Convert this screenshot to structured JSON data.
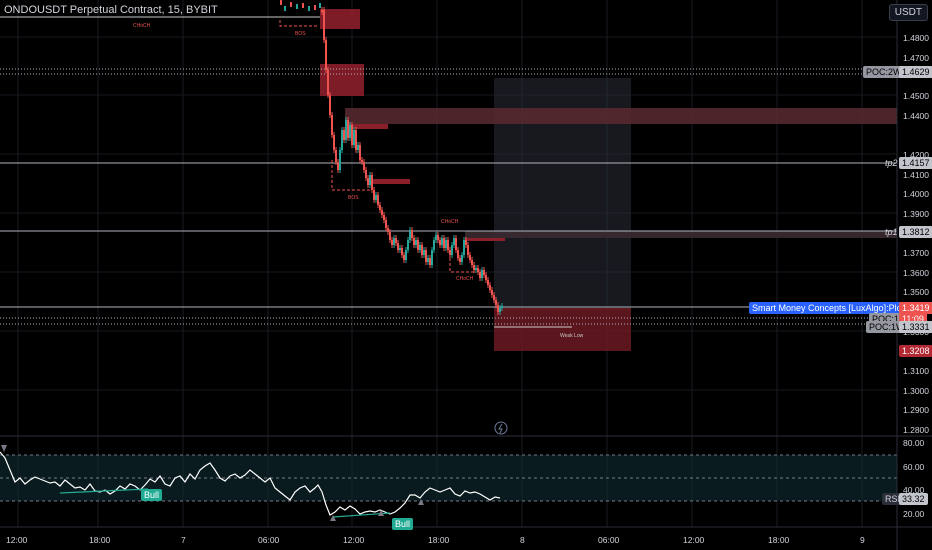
{
  "header": {
    "symbol_title": "ONDOUSDT Perpetual Contract, 15, BYBIT",
    "currency": "USDT"
  },
  "price_axis": {
    "ticks": [
      "1.4800",
      "1.4700",
      "1.4500",
      "1.4400",
      "1.4200",
      "1.4100",
      "1.4000",
      "1.3900",
      "1.3700",
      "1.3600",
      "1.3500",
      "1.3300",
      "1.3100",
      "1.3000",
      "1.2900",
      "1.2800"
    ]
  },
  "rsi_axis": {
    "ticks": [
      "80.00",
      "60.00",
      "40.00",
      "20.00"
    ]
  },
  "time_axis": {
    "ticks": [
      "12:00",
      "18:00",
      "7",
      "06:00",
      "12:00",
      "18:00",
      "8",
      "06:00",
      "12:00",
      "18:00",
      "9"
    ]
  },
  "markers": {
    "poc_2wt": {
      "label": "POC:2WT",
      "value": "1.4629"
    },
    "tp2": {
      "label": "tp2",
      "value": "1.4157"
    },
    "tp1": {
      "label": "tp1",
      "value": "1.3812"
    },
    "smc": {
      "label": "Smart Money Concepts [LuxAlgo]:PlotCandle",
      "value": "1.3419"
    },
    "poc_1d": {
      "label": "POC:1D",
      "value": "11:09"
    },
    "poc_1w": {
      "label": "POC:1W",
      "value": "1.3331"
    },
    "stop": {
      "value": "1.3208"
    },
    "rsi": {
      "label": "RSI",
      "value": "33.32"
    }
  },
  "annotations": {
    "choch_top": "CHoCH",
    "bos1": "BOS",
    "bos2": "BOS",
    "choch_mid": "CHoCH",
    "choch_low": "CHoCH",
    "weak_low": "Weak Low",
    "bull1": "Bull",
    "bull2": "Bull"
  },
  "colors": {
    "up": "#26a69a",
    "down": "#ef5350",
    "accent": "#2962ff",
    "stop": "#b22833",
    "bull": "#22ab94"
  }
}
